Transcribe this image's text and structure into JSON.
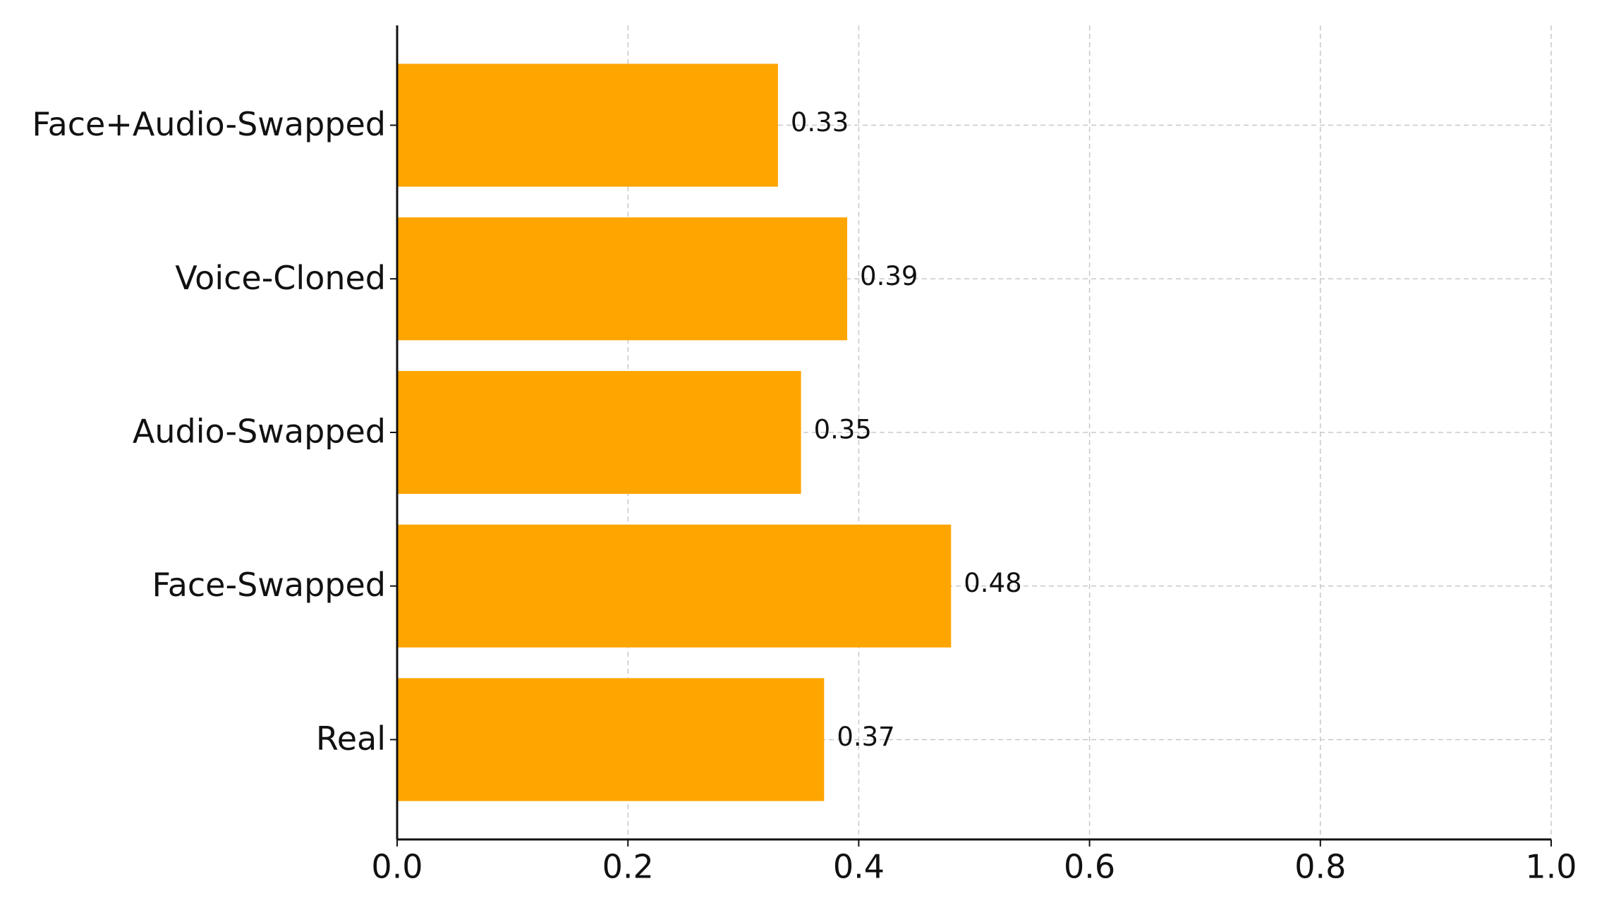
{
  "chart_data": {
    "type": "barh",
    "categories": [
      "Real",
      "Face-Swapped",
      "Audio-Swapped",
      "Voice-Cloned",
      "Face+Audio-Swapped"
    ],
    "values": [
      0.37,
      0.48,
      0.35,
      0.39,
      0.33
    ],
    "color": "#ffa500",
    "xlim": [
      0,
      1
    ],
    "xticks": [
      {
        "value": 0,
        "label": "0.0"
      },
      0.2,
      0.4,
      0.6,
      0.8,
      {
        "value": 1,
        "label": "1.0"
      }
    ],
    "grid": true
  }
}
